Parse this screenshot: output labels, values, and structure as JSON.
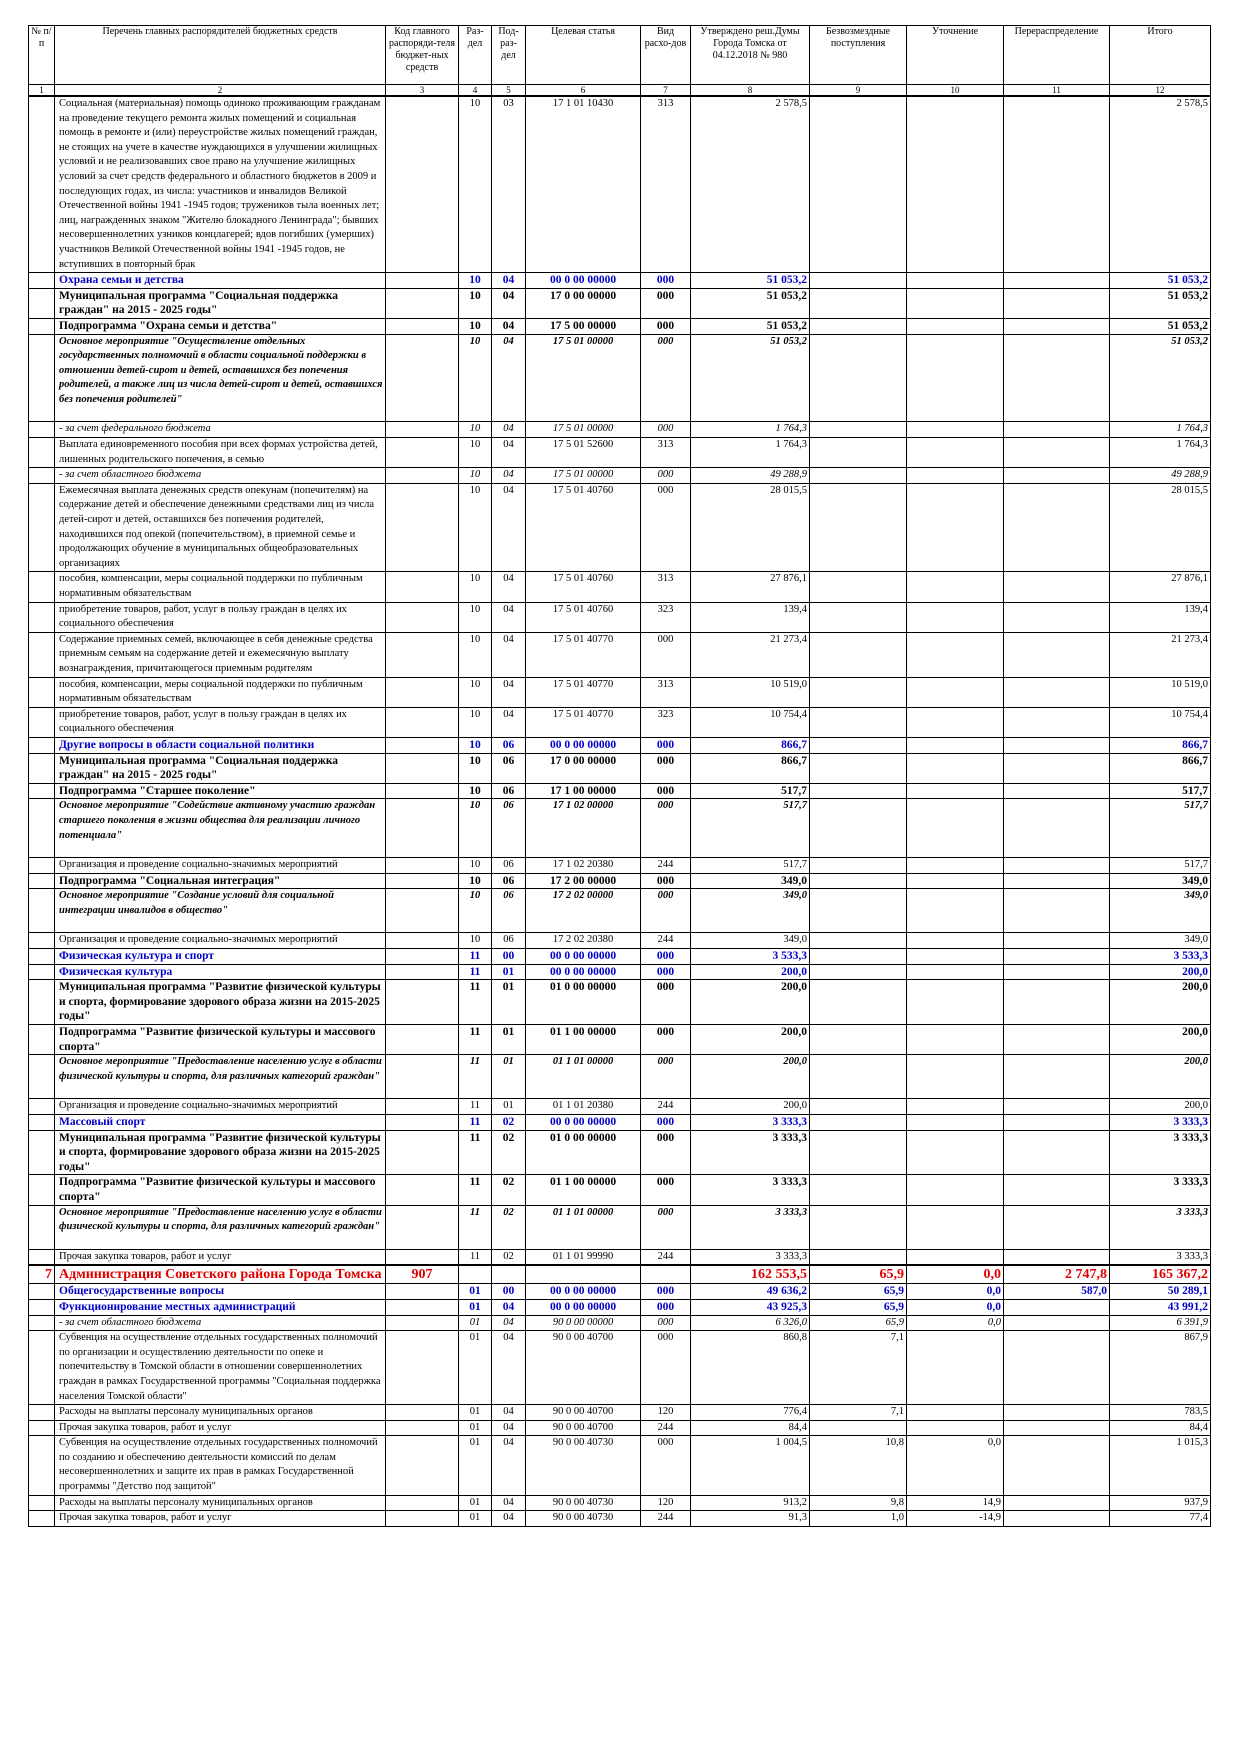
{
  "table": {
    "header": [
      "№ п/п",
      "Перечень главных распорядителей бюджетных средств",
      "Код главного распоряди-теля бюджет-ных средств",
      "Раз-дел",
      "Под-раз-дел",
      "Целевая статья",
      "Вид расхо-дов",
      "Утверждено реш.Думы Города Томска от 04.12.2018 № 980",
      "Безвозмездные поступления",
      "Уточнение",
      "Перераспределение",
      "Итого"
    ],
    "numbers": [
      "1",
      "2",
      "3",
      "4",
      "5",
      "6",
      "7",
      "8",
      "9",
      "10",
      "11",
      "12"
    ],
    "rows": [
      {
        "style": "n",
        "cells": [
          null,
          "Социальная (материальная) помощь одиноко проживающим гражданам на проведение текущего ремонта жилых помещений и социальная помощь в ремонте и (или) переустройстве жилых помещений граждан, не стоящих на учете в качестве нуждающихся в улучшении жилищных условий и не реализовавших свое право на улучшение жилищных условий за счет средств федерального и областного бюджетов в 2009 и последующих годах, из числа: участников и инвалидов Великой Отечественной войны 1941 -1945 годов; тружеников тыла военных лет; лиц, награжденных знаком \"Жителю блокадного Ленинграда\"; бывших несовершеннолетних узников концлагерей; вдов погибших (умерших) участников Великой Отечественной войны 1941 -1945 годов, не вступивших в повторный брак",
          null,
          "10",
          "03",
          "17 1 01 10430",
          "313",
          "2 578,5",
          null,
          null,
          null,
          "2 578,5"
        ]
      },
      {
        "style": "bl",
        "cells": [
          null,
          "Охрана семьи и детства",
          null,
          "10",
          "04",
          "00 0 00 00000",
          "000",
          "51 053,2",
          null,
          null,
          null,
          "51 053,2"
        ]
      },
      {
        "style": "b",
        "cells": [
          null,
          "Муниципальная программа \"Социальная поддержка граждан\" на 2015 - 2025 годы\"",
          null,
          "10",
          "04",
          "17 0 00 00000",
          "000",
          "51 053,2",
          null,
          null,
          null,
          "51 053,2"
        ]
      },
      {
        "style": "b",
        "cells": [
          null,
          "Подпрограмма \"Охрана семьи и детства\"",
          null,
          "10",
          "04",
          "17 5 00 00000",
          "000",
          "51 053,2",
          null,
          null,
          null,
          "51 053,2"
        ]
      },
      {
        "style": "i",
        "cells": [
          null,
          "Основное мероприятие \"Осуществление отдельных государственных полномочий в области социальной поддержки в отношении детей-сирот и детей, оставшихся без попечения родителей, а также лиц из числа детей-сирот и детей, оставшихся без попечения родителей\"",
          null,
          "10",
          "04",
          "17 5 01 00000",
          "000",
          "51 053,2",
          null,
          null,
          null,
          "51 053,2"
        ]
      },
      {
        "style": "it",
        "cells": [
          null,
          "- за счет федерального бюджета",
          null,
          "10",
          "04",
          "17 5 01 00000",
          "000",
          "1 764,3",
          null,
          null,
          null,
          "1 764,3"
        ]
      },
      {
        "style": "n",
        "cells": [
          null,
          "Выплата единовременного пособия при всех формах устройства детей, лишенных родительского попечения, в семью",
          null,
          "10",
          "04",
          "17 5 01 52600",
          "313",
          "1 764,3",
          null,
          null,
          null,
          "1 764,3"
        ]
      },
      {
        "style": "it",
        "cells": [
          null,
          "- за счет областного бюджета",
          null,
          "10",
          "04",
          "17 5 01 00000",
          "000",
          "49 288,9",
          null,
          null,
          null,
          "49 288,9"
        ]
      },
      {
        "style": "n",
        "cells": [
          null,
          "Ежемесячная выплата денежных средств опекунам (попечителям) на содержание детей и обеспечение денежными средствами лиц из числа детей-сирот и детей, оставшихся без попечения родителей, находившихся под опекой (попечительством), в приемной семье и продолжающих обучение в муниципальных общеобразовательных организациях",
          null,
          "10",
          "04",
          "17 5 01 40760",
          "000",
          "28 015,5",
          null,
          null,
          null,
          "28 015,5"
        ]
      },
      {
        "style": "n",
        "cells": [
          null,
          "пособия, компенсации, меры социальной поддержки по публичным нормативным обязательствам",
          null,
          "10",
          "04",
          "17 5 01 40760",
          "313",
          "27 876,1",
          null,
          null,
          null,
          "27 876,1"
        ]
      },
      {
        "style": "n",
        "cells": [
          null,
          "приобретение товаров, работ, услуг в пользу граждан в целях их социального обеспечения",
          null,
          "10",
          "04",
          "17 5 01 40760",
          "323",
          "139,4",
          null,
          null,
          null,
          "139,4"
        ]
      },
      {
        "style": "n",
        "cells": [
          null,
          "Содержание приемных семей, включающее в себя денежные средства приемным семьям на содержание детей и ежемесячную выплату вознаграждения, причитающегося приемным родителям",
          null,
          "10",
          "04",
          "17 5 01 40770",
          "000",
          "21 273,4",
          null,
          null,
          null,
          "21 273,4"
        ]
      },
      {
        "style": "n",
        "cells": [
          null,
          "пособия, компенсации, меры социальной поддержки по публичным нормативным обязательствам",
          null,
          "10",
          "04",
          "17 5 01 40770",
          "313",
          "10 519,0",
          null,
          null,
          null,
          "10 519,0"
        ]
      },
      {
        "style": "n",
        "cells": [
          null,
          "приобретение товаров, работ, услуг в пользу граждан в целях их социального обеспечения",
          null,
          "10",
          "04",
          "17 5 01 40770",
          "323",
          "10 754,4",
          null,
          null,
          null,
          "10 754,4"
        ]
      },
      {
        "style": "bl",
        "cells": [
          null,
          "Другие вопросы в области социальной политики",
          null,
          "10",
          "06",
          "00 0 00 00000",
          "000",
          "866,7",
          null,
          null,
          null,
          "866,7"
        ]
      },
      {
        "style": "b",
        "cells": [
          null,
          "Муниципальная программа \"Социальная поддержка граждан\" на 2015 - 2025 годы\"",
          null,
          "10",
          "06",
          "17 0 00 00000",
          "000",
          "866,7",
          null,
          null,
          null,
          "866,7"
        ]
      },
      {
        "style": "b",
        "cells": [
          null,
          "Подпрограмма \"Старшее поколение\"",
          null,
          "10",
          "06",
          "17 1 00 00000",
          "000",
          "517,7",
          null,
          null,
          null,
          "517,7"
        ]
      },
      {
        "style": "i",
        "cells": [
          null,
          "Основное мероприятие \"Содействие активному участию граждан старшего поколения в жизни общества для реализации личного потенциала\"",
          null,
          "10",
          "06",
          "17 1 02 00000",
          "000",
          "517,7",
          null,
          null,
          null,
          "517,7"
        ]
      },
      {
        "style": "n",
        "cells": [
          null,
          "Организация и проведение социально-значимых мероприятий",
          null,
          "10",
          "06",
          "17 1 02 20380",
          "244",
          "517,7",
          null,
          null,
          null,
          "517,7"
        ]
      },
      {
        "style": "b",
        "cells": [
          null,
          "Подпрограмма \"Социальная интеграция\"",
          null,
          "10",
          "06",
          "17 2 00 00000",
          "000",
          "349,0",
          null,
          null,
          null,
          "349,0"
        ]
      },
      {
        "style": "i",
        "cells": [
          null,
          "Основное мероприятие \"Создание условий для социальной интеграции инвалидов в общество\"",
          null,
          "10",
          "06",
          "17 2 02 00000",
          "000",
          "349,0",
          null,
          null,
          null,
          "349,0"
        ]
      },
      {
        "style": "n",
        "cells": [
          null,
          "Организация и проведение социально-значимых мероприятий",
          null,
          "10",
          "06",
          "17 2 02 20380",
          "244",
          "349,0",
          null,
          null,
          null,
          "349,0"
        ]
      },
      {
        "style": "bl",
        "cells": [
          null,
          "Физическая культура и спорт",
          null,
          "11",
          "00",
          "00 0 00 00000",
          "000",
          "3 533,3",
          null,
          null,
          null,
          "3 533,3"
        ]
      },
      {
        "style": "bl",
        "cells": [
          null,
          "Физическая культура",
          null,
          "11",
          "01",
          "00 0 00 00000",
          "000",
          "200,0",
          null,
          null,
          null,
          "200,0"
        ]
      },
      {
        "style": "b",
        "cells": [
          null,
          "Муниципальная программа \"Развитие физической культуры и спорта, формирование здорового образа жизни на 2015-2025 годы\"",
          null,
          "11",
          "01",
          "01 0 00 00000",
          "000",
          "200,0",
          null,
          null,
          null,
          "200,0"
        ]
      },
      {
        "style": "b",
        "cells": [
          null,
          "Подпрограмма \"Развитие физической культуры и массового спорта\"",
          null,
          "11",
          "01",
          "01 1 00 00000",
          "000",
          "200,0",
          null,
          null,
          null,
          "200,0"
        ]
      },
      {
        "style": "i",
        "cells": [
          null,
          "Основное мероприятие \"Предоставление населению услуг в области физической культуры и спорта, для различных категорий граждан\"",
          null,
          "11",
          "01",
          "01 1 01 00000",
          "000",
          "200,0",
          null,
          null,
          null,
          "200,0"
        ]
      },
      {
        "style": "n",
        "cells": [
          null,
          "Организация и проведение социально-значимых мероприятий",
          null,
          "11",
          "01",
          "01 1 01 20380",
          "244",
          "200,0",
          null,
          null,
          null,
          "200,0"
        ]
      },
      {
        "style": "bl",
        "cells": [
          null,
          "Массовый спорт",
          null,
          "11",
          "02",
          "00 0 00 00000",
          "000",
          "3 333,3",
          null,
          null,
          null,
          "3 333,3"
        ]
      },
      {
        "style": "b",
        "cells": [
          null,
          "Муниципальная программа \"Развитие физической культуры и спорта, формирование здорового образа жизни на 2015-2025 годы\"",
          null,
          "11",
          "02",
          "01 0 00 00000",
          "000",
          "3 333,3",
          null,
          null,
          null,
          "3 333,3"
        ]
      },
      {
        "style": "b",
        "cells": [
          null,
          "Подпрограмма \"Развитие физической культуры и массового спорта\"",
          null,
          "11",
          "02",
          "01 1 00 00000",
          "000",
          "3 333,3",
          null,
          null,
          null,
          "3 333,3"
        ]
      },
      {
        "style": "i",
        "cells": [
          null,
          "Основное мероприятие \"Предоставление населению услуг в области физической культуры и спорта, для различных категорий граждан\"",
          null,
          "11",
          "02",
          "01 1 01 00000",
          "000",
          "3 333,3",
          null,
          null,
          null,
          "3 333,3"
        ]
      },
      {
        "style": "n",
        "cells": [
          null,
          "Прочая закупка товаров, работ и услуг",
          null,
          "11",
          "02",
          "01 1 01 99990",
          "244",
          "3 333,3",
          null,
          null,
          null,
          "3 333,3"
        ]
      },
      {
        "style": "r",
        "cells": [
          "7",
          "Администрация Советского района Города Томска",
          "907",
          null,
          null,
          null,
          null,
          "162 553,5",
          "65,9",
          "0,0",
          "2 747,8",
          "165 367,2"
        ]
      },
      {
        "style": "bl",
        "cells": [
          null,
          "Общегосударственные вопросы",
          null,
          "01",
          "00",
          "00 0 00 00000",
          "000",
          "49 636,2",
          "65,9",
          "0,0",
          "587,0",
          "50 289,1"
        ]
      },
      {
        "style": "bl",
        "cells": [
          null,
          "Функционирование местных администраций",
          null,
          "01",
          "04",
          "00 0 00 00000",
          "000",
          "43 925,3",
          "65,9",
          "0,0",
          null,
          "43 991,2"
        ]
      },
      {
        "style": "it",
        "cells": [
          null,
          "- за счет областного бюджета",
          null,
          "01",
          "04",
          "90 0 00 00000",
          "000",
          "6 326,0",
          "65,9",
          "0,0",
          null,
          "6 391,9"
        ]
      },
      {
        "style": "n",
        "cells": [
          null,
          "Субвенция на осуществление отдельных государственных полномочий по организации и осуществлению деятельности по опеке и попечительству в Томской области в отношении совершеннолетних граждан в рамках Государственной программы \"Социальная поддержка населения Томской области\"",
          null,
          "01",
          "04",
          "90 0 00 40700",
          "000",
          "860,8",
          "7,1",
          null,
          null,
          "867,9"
        ]
      },
      {
        "style": "n",
        "cells": [
          null,
          "Расходы на выплаты персоналу муниципальных органов",
          null,
          "01",
          "04",
          "90 0 00 40700",
          "120",
          "776,4",
          "7,1",
          null,
          null,
          "783,5"
        ]
      },
      {
        "style": "n",
        "cells": [
          null,
          "Прочая закупка товаров, работ и услуг",
          null,
          "01",
          "04",
          "90 0 00 40700",
          "244",
          "84,4",
          null,
          null,
          null,
          "84,4"
        ]
      },
      {
        "style": "n",
        "cells": [
          null,
          "Субвенция на осуществление отдельных государственных полномочий по созданию и обеспечению деятельности комиссий по делам несовершеннолетних и защите их прав в рамках Государственной программы \"Детство под защитой\"",
          null,
          "01",
          "04",
          "90 0 00 40730",
          "000",
          "1 004,5",
          "10,8",
          "0,0",
          null,
          "1 015,3"
        ]
      },
      {
        "style": "n",
        "cells": [
          null,
          "Расходы на выплаты персоналу муниципальных органов",
          null,
          "01",
          "04",
          "90 0 00 40730",
          "120",
          "913,2",
          "9,8",
          "14,9",
          null,
          "937,9"
        ]
      },
      {
        "style": "n",
        "cells": [
          null,
          "Прочая закупка товаров, работ и услуг",
          null,
          "01",
          "04",
          "90 0 00 40730",
          "244",
          "91,3",
          "1,0",
          "-14,9",
          null,
          "77,4"
        ]
      }
    ]
  }
}
